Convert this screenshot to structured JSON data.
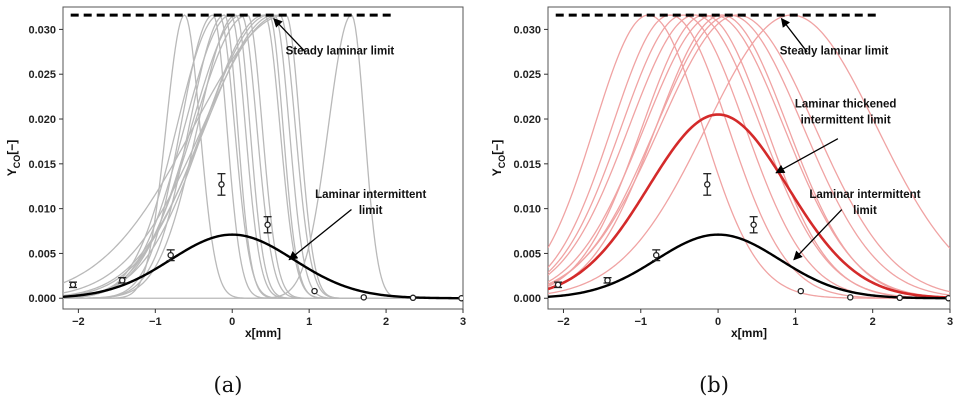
{
  "chart_data": [
    {
      "panel": "(a)",
      "type": "line",
      "xlabel": "x[mm]",
      "ylabel_main": "Y",
      "ylabel_sub": "CO",
      "ylabel_suffix": "[−]",
      "xlim": [
        -2.2,
        3.0
      ],
      "ylim": [
        -0.0012,
        0.0325
      ],
      "x_ticks": [
        -2,
        -1,
        0,
        1,
        2,
        3
      ],
      "x_tick_labels": [
        "−2",
        "−1",
        "0",
        "1",
        "2",
        "3"
      ],
      "y_ticks": [
        0.0,
        0.005,
        0.01,
        0.015,
        0.02,
        0.025,
        0.03
      ],
      "y_tick_labels": [
        "0.000",
        "0.005",
        "0.010",
        "0.015",
        "0.020",
        "0.025",
        "0.030"
      ],
      "steady_limit": {
        "y": 0.0316,
        "x_range": [
          -2.1,
          2.1
        ]
      },
      "intermittent_limit": {
        "peak_y": 0.0071,
        "center": 0.0,
        "width": 0.8,
        "color": "#000000"
      },
      "flamelets": {
        "color": "#b9b9b9",
        "peak_y": 0.0316,
        "centers": [
          -0.62,
          -0.25,
          -0.17,
          -0.1,
          -0.02,
          0.05,
          0.12,
          0.2,
          0.42,
          0.48,
          0.55,
          0.62,
          0.7,
          1.55
        ],
        "left_widths": [
          0.24,
          0.42,
          0.55,
          0.46,
          0.6,
          0.5,
          0.65,
          0.7,
          0.78,
          0.85,
          0.9,
          1.0,
          1.2,
          0.3
        ],
        "right_widths": [
          0.2,
          0.18,
          0.2,
          0.17,
          0.19,
          0.18,
          0.2,
          0.19,
          0.2,
          0.18,
          0.19,
          0.2,
          0.18,
          0.17
        ]
      },
      "experimental": {
        "x": [
          -2.07,
          -1.43,
          -0.8,
          -0.14,
          0.46,
          1.07,
          1.71,
          2.35,
          2.98
        ],
        "y": [
          0.0015,
          0.002,
          0.0048,
          0.0127,
          0.0082,
          0.0008,
          0.0001,
          5e-05,
          0.0
        ],
        "err": [
          0.0003,
          0.0003,
          0.0006,
          0.0012,
          0.0009,
          0.0,
          0.0,
          0.0,
          0.0
        ]
      },
      "annotations": [
        {
          "text": "Steady laminar limit",
          "x": 1.4,
          "y": 0.0272,
          "ax": 0.95,
          "ay": 0.0275,
          "tx": 0.54,
          "ty": 0.0312
        },
        {
          "text": "Laminar intermittent",
          "x": 1.8,
          "y": 0.0112,
          "ax": 1.55,
          "ay": 0.0099,
          "tx": 0.74,
          "ty": 0.0043
        },
        {
          "text": "limit",
          "x": 1.8,
          "y": 0.0094
        }
      ]
    },
    {
      "panel": "(b)",
      "type": "line",
      "xlabel": "x[mm]",
      "ylabel_main": "Y",
      "ylabel_sub": "CO",
      "ylabel_suffix": "[−]",
      "xlim": [
        -2.2,
        3.0
      ],
      "ylim": [
        -0.0012,
        0.0325
      ],
      "x_ticks": [
        -2,
        -1,
        0,
        1,
        2,
        3
      ],
      "x_tick_labels": [
        "−2",
        "−1",
        "0",
        "1",
        "2",
        "3"
      ],
      "y_ticks": [
        0.0,
        0.005,
        0.01,
        0.015,
        0.02,
        0.025,
        0.03
      ],
      "y_tick_labels": [
        "0.000",
        "0.005",
        "0.010",
        "0.015",
        "0.020",
        "0.025",
        "0.030"
      ],
      "steady_limit": {
        "y": 0.0316,
        "x_range": [
          -2.1,
          2.1
        ]
      },
      "intermittent_limit": {
        "peak_y": 0.0071,
        "center": 0.0,
        "width": 0.8,
        "color": "#000000"
      },
      "thickened_limit": {
        "peak_y": 0.0205,
        "center": 0.0,
        "width": 0.9,
        "color": "#d42a2a"
      },
      "flamelets": {
        "color": "#f0a3a3",
        "peak_y": 0.0316,
        "centers": [
          -0.9,
          -0.62,
          -0.45,
          -0.3,
          -0.18,
          -0.05,
          0.05,
          0.15,
          0.25,
          0.95
        ],
        "widths": [
          0.7,
          0.75,
          0.8,
          0.85,
          0.8,
          0.9,
          0.85,
          0.95,
          1.0,
          1.1
        ]
      },
      "experimental": {
        "x": [
          -2.07,
          -1.43,
          -0.8,
          -0.14,
          0.46,
          1.07,
          1.71,
          2.35,
          2.98
        ],
        "y": [
          0.0015,
          0.002,
          0.0048,
          0.0127,
          0.0082,
          0.0008,
          0.0001,
          5e-05,
          0.0
        ],
        "err": [
          0.0003,
          0.0003,
          0.0006,
          0.0012,
          0.0009,
          0.0,
          0.0,
          0.0,
          0.0
        ]
      },
      "annotations": [
        {
          "text": "Steady laminar limit",
          "x": 1.5,
          "y": 0.0272,
          "ax": 1.15,
          "ay": 0.0275,
          "tx": 0.82,
          "ty": 0.0312
        },
        {
          "text": "Laminar thickened",
          "x": 1.65,
          "y": 0.0213,
          "ax": 1.55,
          "ay": 0.0178,
          "tx": 0.75,
          "ty": 0.014
        },
        {
          "text": "intermittent limit",
          "x": 1.65,
          "y": 0.0195
        },
        {
          "text": "Laminar intermittent",
          "x": 1.9,
          "y": 0.0112,
          "ax": 1.6,
          "ay": 0.0099,
          "tx": 0.98,
          "ty": 0.0043
        },
        {
          "text": "limit",
          "x": 1.9,
          "y": 0.0094
        }
      ]
    }
  ],
  "captions": {
    "a": "(a)",
    "b": "(b)"
  },
  "colors": {
    "frame": "#555555",
    "steady": "#000000",
    "marker": "#222222"
  }
}
